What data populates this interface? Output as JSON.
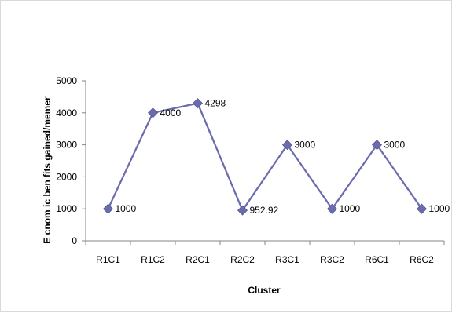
{
  "chart_data": {
    "type": "line",
    "categories": [
      "R1C1",
      "R1C2",
      "R2C1",
      "R2C2",
      "R3C1",
      "R3C2",
      "R6C1",
      "R6C2"
    ],
    "series": [
      {
        "values": [
          1000,
          4000,
          4298,
          952.92,
          3000,
          1000,
          3000,
          1000
        ],
        "data_labels": [
          "1000",
          "4000",
          "4298",
          "952.92",
          "3000",
          "1000",
          "3000",
          "1000"
        ],
        "color": "#6B6BAE",
        "marker": "diamond"
      }
    ],
    "title": "",
    "xlabel": "Cluster",
    "ylabel": "E cnom ic ben fits gained/memer",
    "ylim": [
      0,
      5000
    ],
    "yticks": [
      "0",
      "1000",
      "2000",
      "3000",
      "4000",
      "5000"
    ],
    "grid": false,
    "legend": "none"
  }
}
